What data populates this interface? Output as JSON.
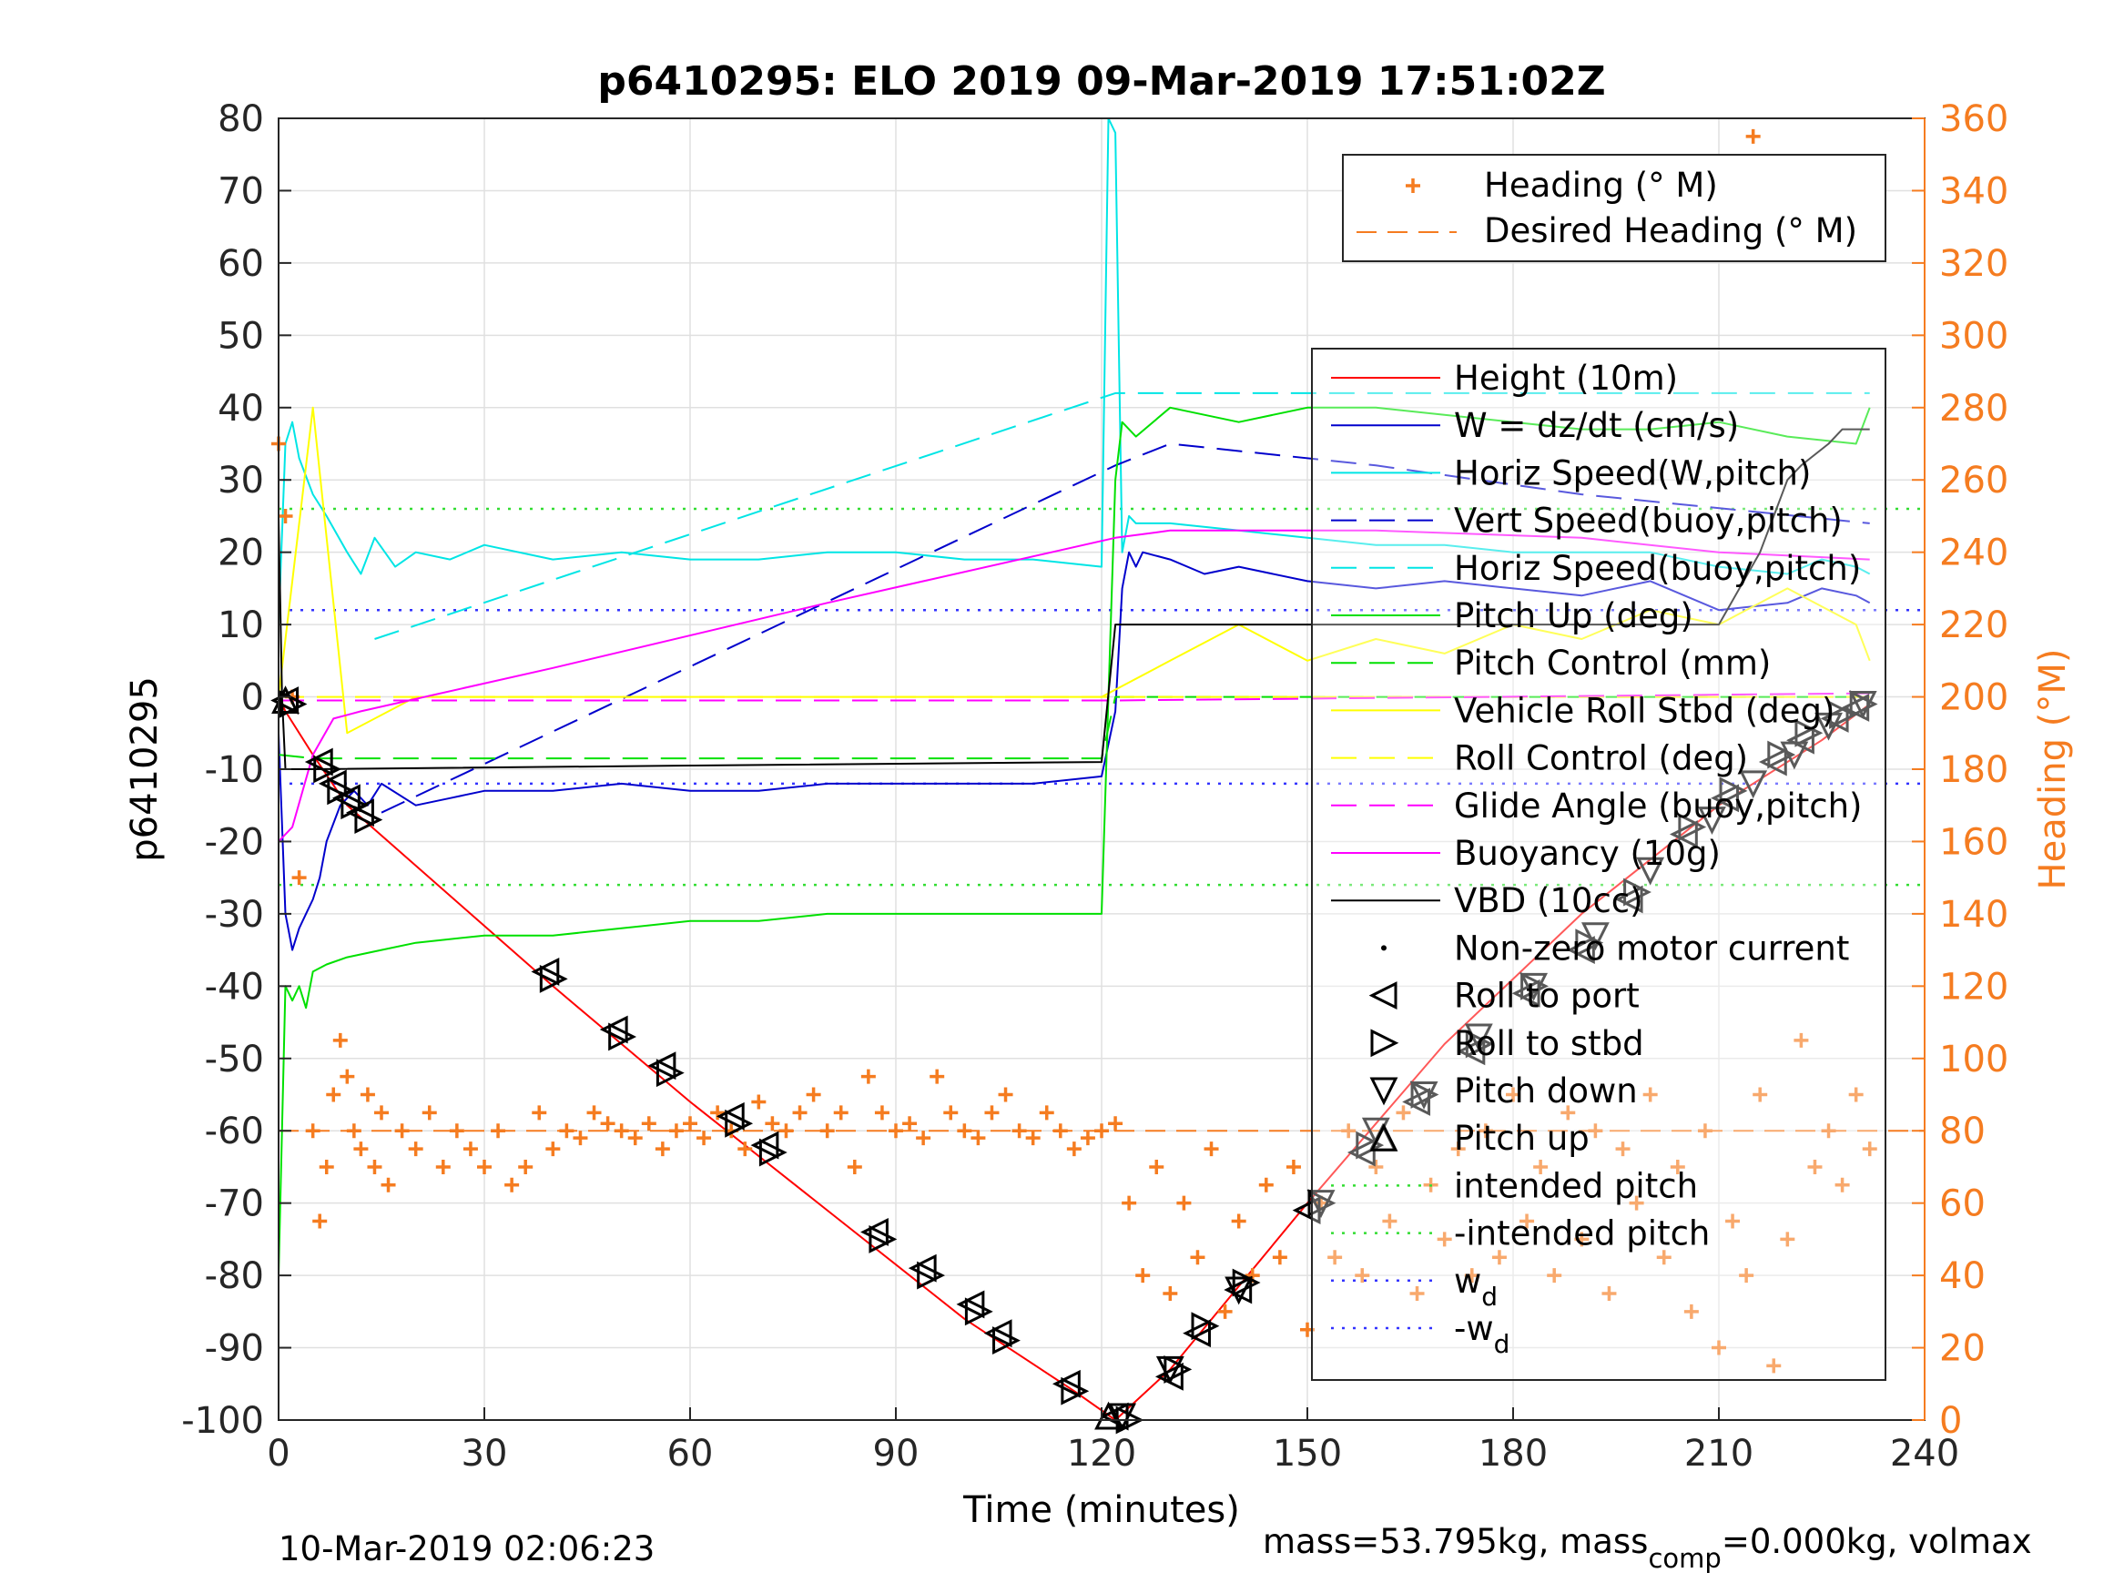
{
  "chart_data": {
    "type": "line",
    "title": "p6410295: ELO 2019 09-Mar-2019 17:51:02Z",
    "xlabel": "Time (minutes)",
    "ylabel_left": "p6410295",
    "ylabel_right": "Heading (°M)",
    "xlim": [
      0,
      240
    ],
    "ylim_left": [
      -100,
      80
    ],
    "ylim_right": [
      0,
      360
    ],
    "x_ticks": [
      0,
      30,
      60,
      90,
      120,
      150,
      180,
      210,
      240
    ],
    "y_ticks_left": [
      80,
      70,
      60,
      50,
      40,
      30,
      20,
      10,
      0,
      -10,
      -20,
      -30,
      -40,
      -50,
      -60,
      -70,
      -80,
      -90,
      -100
    ],
    "y_ticks_right": [
      360,
      340,
      320,
      300,
      280,
      260,
      240,
      220,
      200,
      180,
      160,
      140,
      120,
      100,
      80,
      60,
      40,
      20,
      0
    ],
    "grid": true,
    "colors": {
      "height": "#ff0000",
      "w": "#0000cc",
      "horiz_w": "#00e5e5",
      "vert_buoy": "#0000cc",
      "horiz_buoy": "#00e5e5",
      "pitch_up": "#00e000",
      "pitch_control": "#00e000",
      "roll": "#ffff00",
      "glide": "#ff00ff",
      "buoyancy": "#ff00ff",
      "vbd": "#000000",
      "heading": "#f57c20",
      "markers": "#000000",
      "intended": "#33dd33",
      "wd": "#3333ff",
      "right_axis": "#f57c20"
    },
    "legend_top": {
      "position": "top-right",
      "entries": [
        "Heading (° M)",
        "Desired Heading (° M)"
      ]
    },
    "legend_main": {
      "position": "right",
      "entries": [
        "Height (10m)",
        "W = dz/dt (cm/s)",
        "Horiz Speed(W,pitch)",
        "Vert Speed(buoy,pitch)",
        "Horiz Speed(buoy,pitch)",
        "Pitch Up (deg)",
        "Pitch Control (mm)",
        "Vehicle Roll Stbd (deg)",
        "Roll Control (deg)",
        "Glide Angle (buoy,pitch)",
        "Buoyancy (10g)",
        "VBD (10cc)",
        "Non-zero motor current",
        "Roll to port",
        "Roll to stbd",
        "Pitch down",
        "Pitch up",
        "intended pitch",
        "-intended pitch",
        "w",
        "-w"
      ],
      "subscripts": {
        "19": "d",
        "20": "d"
      }
    },
    "series": [
      {
        "name": "Height (10m)",
        "axis": "left",
        "style": "solid",
        "x": [
          0,
          1,
          5,
          10,
          40,
          60,
          80,
          100,
          116,
          122,
          130,
          150,
          170,
          190,
          210,
          225,
          232
        ],
        "y": [
          0,
          -2,
          -8,
          -15,
          -40,
          -56,
          -71,
          -86,
          -96,
          -100,
          -93,
          -70,
          -48,
          -30,
          -15,
          -6,
          -1
        ]
      },
      {
        "name": "W = dz/dt (cm/s)",
        "axis": "left",
        "style": "solid",
        "x": [
          0,
          1,
          2,
          3,
          4,
          5,
          6,
          7,
          9,
          11,
          13,
          15,
          20,
          25,
          30,
          40,
          50,
          60,
          70,
          80,
          90,
          100,
          110,
          120,
          122,
          123,
          124,
          125,
          126,
          130,
          135,
          140,
          150,
          160,
          170,
          180,
          190,
          200,
          210,
          220,
          225,
          230,
          232
        ],
        "y": [
          -5,
          -30,
          -35,
          -32,
          -30,
          -28,
          -25,
          -20,
          -15,
          -13,
          -15,
          -12,
          -15,
          -14,
          -13,
          -13,
          -12,
          -13,
          -13,
          -12,
          -12,
          -12,
          -12,
          -11,
          -2,
          15,
          20,
          18,
          20,
          19,
          17,
          18,
          16,
          15,
          16,
          15,
          14,
          16,
          12,
          13,
          15,
          14,
          13
        ]
      },
      {
        "name": "Horiz Speed(W,pitch)",
        "axis": "left",
        "style": "solid",
        "x": [
          0,
          1,
          2,
          3,
          5,
          7,
          10,
          12,
          14,
          17,
          20,
          25,
          30,
          40,
          50,
          60,
          70,
          80,
          90,
          100,
          110,
          120,
          121,
          122,
          123,
          124,
          125,
          128,
          130,
          140,
          150,
          160,
          170,
          180,
          190,
          200,
          210,
          220,
          225,
          230,
          232
        ],
        "y": [
          10,
          35,
          38,
          33,
          28,
          25,
          20,
          17,
          22,
          18,
          20,
          19,
          21,
          19,
          20,
          19,
          19,
          20,
          20,
          19,
          19,
          18,
          80,
          78,
          20,
          25,
          24,
          24,
          24,
          23,
          22,
          21,
          21,
          20,
          20,
          20,
          18,
          17,
          19,
          18,
          17
        ]
      },
      {
        "name": "Vert Speed(buoy,pitch)",
        "axis": "left",
        "style": "dashed",
        "x": [
          15,
          122,
          130,
          160,
          190,
          232
        ],
        "y": [
          -16,
          32,
          35,
          32,
          28,
          24
        ]
      },
      {
        "name": "Horiz Speed(buoy,pitch)",
        "axis": "left",
        "style": "dashed",
        "x": [
          14,
          122,
          130,
          160,
          190,
          232
        ],
        "y": [
          8,
          42,
          42,
          42,
          42,
          42
        ]
      },
      {
        "name": "Pitch Up (deg)",
        "axis": "left",
        "style": "solid",
        "x": [
          0,
          1,
          2,
          3,
          4,
          5,
          7,
          10,
          15,
          20,
          30,
          40,
          50,
          60,
          70,
          80,
          90,
          100,
          110,
          120,
          121,
          122,
          123,
          125,
          130,
          140,
          150,
          160,
          170,
          180,
          190,
          200,
          210,
          220,
          230,
          232
        ],
        "y": [
          -80,
          -40,
          -42,
          -40,
          -43,
          -38,
          -37,
          -36,
          -35,
          -34,
          -33,
          -33,
          -32,
          -31,
          -31,
          -30,
          -30,
          -30,
          -30,
          -30,
          0,
          30,
          38,
          36,
          40,
          38,
          40,
          40,
          39,
          38,
          37,
          37,
          38,
          36,
          35,
          40
        ]
      },
      {
        "name": "Pitch Control (mm)",
        "axis": "left",
        "style": "dashed",
        "x": [
          0,
          5,
          120,
          122,
          232
        ],
        "y": [
          -8,
          -8.5,
          -8.5,
          0,
          0
        ]
      },
      {
        "name": "Vehicle Roll Stbd (deg)",
        "axis": "left",
        "style": "solid",
        "x": [
          0,
          5,
          10,
          20,
          30,
          40,
          50,
          60,
          70,
          80,
          90,
          100,
          110,
          120,
          130,
          140,
          150,
          160,
          170,
          180,
          190,
          200,
          210,
          220,
          230,
          232
        ],
        "y": [
          0,
          40,
          -5,
          0,
          0,
          0,
          0,
          0,
          0,
          0,
          0,
          0,
          0,
          0,
          5,
          10,
          5,
          8,
          6,
          10,
          8,
          12,
          10,
          15,
          10,
          5
        ]
      },
      {
        "name": "Roll Control (deg)",
        "axis": "left",
        "style": "dashed",
        "x": [
          0,
          232
        ],
        "y": [
          0,
          0
        ]
      },
      {
        "name": "Glide Angle (buoy,pitch)",
        "axis": "left",
        "style": "dashed",
        "x": [
          0,
          122,
          232
        ],
        "y": [
          -0.5,
          -0.5,
          0.5
        ]
      },
      {
        "name": "Buoyancy (10g)",
        "axis": "left",
        "style": "solid",
        "x": [
          0,
          2,
          5,
          8,
          12,
          40,
          80,
          122,
          130,
          160,
          190,
          210,
          232
        ],
        "y": [
          -20,
          -18,
          -8,
          -3,
          -2,
          4,
          13,
          22,
          23,
          23,
          22,
          20,
          19
        ]
      },
      {
        "name": "VBD (10cc)",
        "axis": "left",
        "style": "solid",
        "x": [
          0,
          0.5,
          1,
          2,
          5,
          60,
          120,
          122,
          130,
          180,
          210,
          216,
          218,
          220,
          222,
          226,
          228,
          232
        ],
        "y": [
          25,
          0,
          -10,
          -10,
          -10,
          -9.5,
          -9,
          10,
          10,
          10,
          10,
          20,
          25,
          30,
          32,
          35,
          37,
          37
        ]
      }
    ],
    "intended_pitch": 26,
    "neg_intended_pitch": -26,
    "w_d": 12,
    "neg_w_d": -12,
    "desired_heading_deg": 80,
    "heading_series": {
      "name": "Heading (° M)",
      "axis": "right",
      "x": [
        0,
        1,
        2,
        3,
        5,
        6,
        7,
        8,
        9,
        10,
        11,
        12,
        13,
        14,
        15,
        16,
        18,
        20,
        22,
        24,
        26,
        28,
        30,
        32,
        34,
        36,
        38,
        40,
        42,
        44,
        46,
        48,
        50,
        52,
        54,
        56,
        58,
        60,
        62,
        64,
        66,
        68,
        70,
        72,
        74,
        76,
        78,
        80,
        82,
        84,
        86,
        88,
        90,
        92,
        94,
        96,
        98,
        100,
        102,
        104,
        106,
        108,
        110,
        112,
        114,
        116,
        118,
        120,
        122,
        124,
        126,
        128,
        130,
        132,
        134,
        136,
        138,
        140,
        142,
        144,
        146,
        148,
        150,
        152,
        154,
        156,
        158,
        160,
        162,
        164,
        166,
        168,
        170,
        172,
        174,
        176,
        178,
        180,
        182,
        184,
        186,
        188,
        190,
        192,
        194,
        196,
        198,
        200,
        202,
        204,
        206,
        208,
        210,
        212,
        214,
        216,
        218,
        220,
        222,
        224,
        226,
        228,
        230,
        232
      ],
      "y": [
        270,
        250,
        200,
        150,
        80,
        55,
        70,
        90,
        105,
        95,
        80,
        75,
        90,
        70,
        85,
        65,
        80,
        75,
        85,
        70,
        80,
        75,
        70,
        80,
        65,
        70,
        85,
        75,
        80,
        78,
        85,
        82,
        80,
        78,
        82,
        75,
        80,
        82,
        78,
        85,
        80,
        75,
        88,
        82,
        80,
        85,
        90,
        80,
        85,
        70,
        95,
        85,
        80,
        82,
        78,
        95,
        85,
        80,
        78,
        85,
        90,
        80,
        78,
        85,
        80,
        75,
        78,
        80,
        82,
        60,
        40,
        70,
        35,
        60,
        45,
        75,
        30,
        55,
        40,
        65,
        45,
        70,
        25,
        60,
        45,
        80,
        40,
        70,
        55,
        85,
        35,
        65,
        50,
        75,
        40,
        80,
        45,
        90,
        55,
        70,
        40,
        85,
        50,
        80,
        35,
        75,
        60,
        90,
        45,
        70,
        30,
        80,
        20,
        55,
        40,
        90,
        15,
        50,
        105,
        70,
        80,
        65,
        90,
        75
      ]
    },
    "heading_outliers": {
      "x": [
        215,
        216,
        217
      ],
      "y": [
        355,
        345,
        340
      ]
    },
    "roll_port_markers": {
      "x": [
        1,
        6,
        8,
        10,
        12,
        39,
        49,
        56,
        66,
        71,
        87,
        94,
        101,
        105,
        115,
        122,
        130,
        134,
        140,
        150,
        158,
        166,
        174,
        182,
        190,
        197,
        205,
        211,
        218,
        222,
        227,
        230
      ],
      "y": [
        -0.5,
        -9,
        -12,
        -14,
        -16,
        -38,
        -46,
        -51,
        -58,
        -62,
        -74,
        -79,
        -84,
        -88,
        -95,
        -99.5,
        -94,
        -88,
        -82,
        -71,
        -63,
        -56,
        -49,
        -41,
        -35,
        -28,
        -19,
        -14,
        -9,
        -6,
        -3,
        -1.5
      ]
    },
    "roll_stbd_markers": {
      "x": [
        2,
        7,
        9,
        11,
        13,
        40,
        50,
        57,
        67,
        72,
        88,
        95,
        102,
        106,
        116,
        124,
        131,
        135,
        141,
        152,
        159,
        167,
        175,
        183,
        191,
        198,
        206,
        212,
        219,
        223,
        228,
        231
      ],
      "y": [
        -1,
        -10,
        -13,
        -15,
        -17,
        -39,
        -47,
        -52,
        -59,
        -63,
        -75,
        -80,
        -85,
        -89,
        -96,
        -100,
        -93,
        -87,
        -81,
        -70,
        -62,
        -55,
        -48,
        -40,
        -34,
        -27,
        -18,
        -13,
        -8,
        -5,
        -2.5,
        -1
      ]
    },
    "pitch_down_markers": {
      "x": [
        123,
        130,
        140,
        152,
        160,
        167,
        175,
        183,
        192,
        200,
        209,
        215,
        221,
        226,
        231
      ],
      "y": [
        -99.5,
        -93,
        -82,
        -70,
        -60,
        -55,
        -47,
        -40,
        -33,
        -24,
        -17,
        -12,
        -8,
        -4,
        -1
      ]
    },
    "pitch_up_markers": {
      "x": [
        1,
        121,
        161
      ],
      "y": [
        -0.5,
        -99.5,
        -61
      ]
    },
    "footer": {
      "left": "10-Mar-2019 02:06:23",
      "right_main": "mass=53.795kg, mass",
      "right_sub": "comp",
      "right_tail": "=0.000kg, volmax"
    }
  }
}
